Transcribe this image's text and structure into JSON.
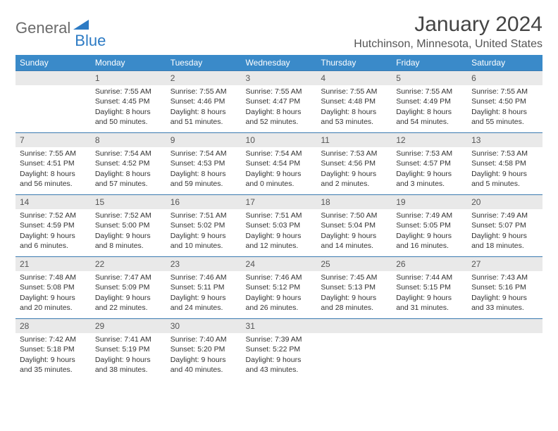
{
  "logo": {
    "text1": "General",
    "text2": "Blue"
  },
  "title": "January 2024",
  "location": "Hutchinson, Minnesota, United States",
  "weekdays": [
    "Sunday",
    "Monday",
    "Tuesday",
    "Wednesday",
    "Thursday",
    "Friday",
    "Saturday"
  ],
  "colors": {
    "header_bg": "#3a8ac9",
    "header_text": "#ffffff",
    "daynum_bg": "#e9e9e9",
    "rule": "#3a7ab0",
    "logo_gray": "#6a6a6a",
    "logo_blue": "#2d7bc4"
  },
  "start_weekday": 1,
  "days": [
    {
      "n": 1,
      "sunrise": "7:55 AM",
      "sunset": "4:45 PM",
      "daylight": "8 hours and 50 minutes."
    },
    {
      "n": 2,
      "sunrise": "7:55 AM",
      "sunset": "4:46 PM",
      "daylight": "8 hours and 51 minutes."
    },
    {
      "n": 3,
      "sunrise": "7:55 AM",
      "sunset": "4:47 PM",
      "daylight": "8 hours and 52 minutes."
    },
    {
      "n": 4,
      "sunrise": "7:55 AM",
      "sunset": "4:48 PM",
      "daylight": "8 hours and 53 minutes."
    },
    {
      "n": 5,
      "sunrise": "7:55 AM",
      "sunset": "4:49 PM",
      "daylight": "8 hours and 54 minutes."
    },
    {
      "n": 6,
      "sunrise": "7:55 AM",
      "sunset": "4:50 PM",
      "daylight": "8 hours and 55 minutes."
    },
    {
      "n": 7,
      "sunrise": "7:55 AM",
      "sunset": "4:51 PM",
      "daylight": "8 hours and 56 minutes."
    },
    {
      "n": 8,
      "sunrise": "7:54 AM",
      "sunset": "4:52 PM",
      "daylight": "8 hours and 57 minutes."
    },
    {
      "n": 9,
      "sunrise": "7:54 AM",
      "sunset": "4:53 PM",
      "daylight": "8 hours and 59 minutes."
    },
    {
      "n": 10,
      "sunrise": "7:54 AM",
      "sunset": "4:54 PM",
      "daylight": "9 hours and 0 minutes."
    },
    {
      "n": 11,
      "sunrise": "7:53 AM",
      "sunset": "4:56 PM",
      "daylight": "9 hours and 2 minutes."
    },
    {
      "n": 12,
      "sunrise": "7:53 AM",
      "sunset": "4:57 PM",
      "daylight": "9 hours and 3 minutes."
    },
    {
      "n": 13,
      "sunrise": "7:53 AM",
      "sunset": "4:58 PM",
      "daylight": "9 hours and 5 minutes."
    },
    {
      "n": 14,
      "sunrise": "7:52 AM",
      "sunset": "4:59 PM",
      "daylight": "9 hours and 6 minutes."
    },
    {
      "n": 15,
      "sunrise": "7:52 AM",
      "sunset": "5:00 PM",
      "daylight": "9 hours and 8 minutes."
    },
    {
      "n": 16,
      "sunrise": "7:51 AM",
      "sunset": "5:02 PM",
      "daylight": "9 hours and 10 minutes."
    },
    {
      "n": 17,
      "sunrise": "7:51 AM",
      "sunset": "5:03 PM",
      "daylight": "9 hours and 12 minutes."
    },
    {
      "n": 18,
      "sunrise": "7:50 AM",
      "sunset": "5:04 PM",
      "daylight": "9 hours and 14 minutes."
    },
    {
      "n": 19,
      "sunrise": "7:49 AM",
      "sunset": "5:05 PM",
      "daylight": "9 hours and 16 minutes."
    },
    {
      "n": 20,
      "sunrise": "7:49 AM",
      "sunset": "5:07 PM",
      "daylight": "9 hours and 18 minutes."
    },
    {
      "n": 21,
      "sunrise": "7:48 AM",
      "sunset": "5:08 PM",
      "daylight": "9 hours and 20 minutes."
    },
    {
      "n": 22,
      "sunrise": "7:47 AM",
      "sunset": "5:09 PM",
      "daylight": "9 hours and 22 minutes."
    },
    {
      "n": 23,
      "sunrise": "7:46 AM",
      "sunset": "5:11 PM",
      "daylight": "9 hours and 24 minutes."
    },
    {
      "n": 24,
      "sunrise": "7:46 AM",
      "sunset": "5:12 PM",
      "daylight": "9 hours and 26 minutes."
    },
    {
      "n": 25,
      "sunrise": "7:45 AM",
      "sunset": "5:13 PM",
      "daylight": "9 hours and 28 minutes."
    },
    {
      "n": 26,
      "sunrise": "7:44 AM",
      "sunset": "5:15 PM",
      "daylight": "9 hours and 31 minutes."
    },
    {
      "n": 27,
      "sunrise": "7:43 AM",
      "sunset": "5:16 PM",
      "daylight": "9 hours and 33 minutes."
    },
    {
      "n": 28,
      "sunrise": "7:42 AM",
      "sunset": "5:18 PM",
      "daylight": "9 hours and 35 minutes."
    },
    {
      "n": 29,
      "sunrise": "7:41 AM",
      "sunset": "5:19 PM",
      "daylight": "9 hours and 38 minutes."
    },
    {
      "n": 30,
      "sunrise": "7:40 AM",
      "sunset": "5:20 PM",
      "daylight": "9 hours and 40 minutes."
    },
    {
      "n": 31,
      "sunrise": "7:39 AM",
      "sunset": "5:22 PM",
      "daylight": "9 hours and 43 minutes."
    }
  ],
  "labels": {
    "sunrise": "Sunrise:",
    "sunset": "Sunset:",
    "daylight": "Daylight:"
  }
}
